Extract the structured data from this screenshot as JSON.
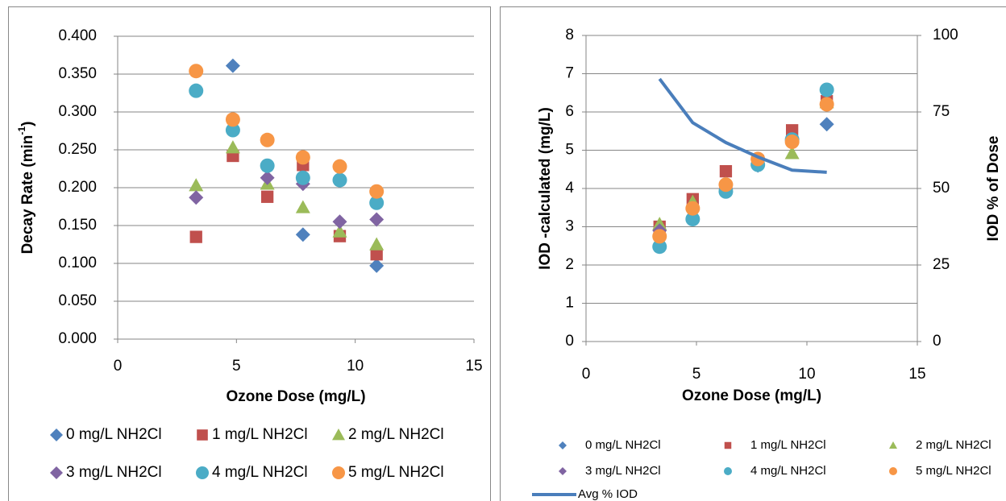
{
  "chart_data": [
    {
      "type": "scatter",
      "xlabel": "Ozone Dose (mg/L)",
      "ylabel_parts": [
        "Decay Rate (min",
        "-1",
        ")"
      ],
      "x": [
        3.3,
        4.85,
        6.3,
        7.8,
        9.35,
        10.9
      ],
      "xlim": [
        0,
        15
      ],
      "xticks": [
        0,
        5,
        10,
        15
      ],
      "ylim": [
        0,
        0.4
      ],
      "yticks": [
        {
          "value": 0,
          "label": "0.000"
        },
        {
          "value": 0.05,
          "label": "0.050"
        },
        {
          "value": 0.1,
          "label": "0.100"
        },
        {
          "value": 0.15,
          "label": "0.150"
        },
        {
          "value": 0.2,
          "label": "0.200"
        },
        {
          "value": 0.25,
          "label": "0.250"
        },
        {
          "value": 0.3,
          "label": "0.300"
        },
        {
          "value": 0.35,
          "label": "0.350"
        },
        {
          "value": 0.4,
          "label": "0.400"
        }
      ],
      "grid": true,
      "legend": "bottom",
      "series": [
        {
          "name": "0 mg/L NH2Cl",
          "color": "#4f81bd",
          "marker": "diamond",
          "values": [
            null,
            0.361,
            null,
            0.138,
            null,
            0.097
          ]
        },
        {
          "name": "1 mg/L NH2Cl",
          "color": "#c0504d",
          "marker": "square",
          "values": [
            0.135,
            0.242,
            0.188,
            0.23,
            0.136,
            0.112
          ]
        },
        {
          "name": "2 mg/L NH2Cl",
          "color": "#9bbb59",
          "marker": "triangle",
          "values": [
            0.203,
            0.253,
            0.205,
            0.174,
            0.142,
            0.125
          ]
        },
        {
          "name": "3 mg/L NH2Cl",
          "color": "#8064a2",
          "marker": "diamond",
          "values": [
            0.187,
            null,
            0.213,
            0.205,
            0.155,
            0.158
          ]
        },
        {
          "name": "4 mg/L NH2Cl",
          "color": "#4bacc6",
          "marker": "circle",
          "values": [
            0.328,
            0.276,
            0.229,
            0.213,
            0.21,
            0.18
          ]
        },
        {
          "name": "5 mg/L NH2Cl",
          "color": "#f79646",
          "marker": "circle",
          "values": [
            0.354,
            0.29,
            0.263,
            0.24,
            0.228,
            0.195
          ]
        }
      ]
    },
    {
      "type": "scatter",
      "xlabel": "Ozone Dose (mg/L)",
      "ylabel": "IOD -calculated (mg/L)",
      "y2label": "IOD % of Dose",
      "x": [
        3.33,
        4.83,
        6.33,
        7.78,
        9.33,
        10.9
      ],
      "xlim": [
        0,
        15
      ],
      "xticks": [
        0,
        5,
        10,
        15
      ],
      "ylim": [
        0,
        8
      ],
      "yticks": [
        0,
        1,
        2,
        3,
        4,
        5,
        6,
        7,
        8
      ],
      "y2lim": [
        0,
        100
      ],
      "y2ticks": [
        0,
        25,
        50,
        75,
        100
      ],
      "grid": true,
      "legend": "bottom",
      "series": [
        {
          "name": "0 mg/L NH2Cl",
          "color": "#4f81bd",
          "marker": "diamond",
          "values": [
            null,
            null,
            null,
            4.6,
            null,
            5.68
          ]
        },
        {
          "name": "1 mg/L NH2Cl",
          "color": "#c0504d",
          "marker": "square",
          "values": [
            3.0,
            3.72,
            4.45,
            4.72,
            5.52,
            6.28
          ]
        },
        {
          "name": "2 mg/L NH2Cl",
          "color": "#9bbb59",
          "marker": "triangle",
          "values": [
            3.07,
            3.65,
            4.12,
            4.75,
            4.92,
            6.25
          ]
        },
        {
          "name": "3 mg/L NH2Cl",
          "color": "#8064a2",
          "marker": "diamond",
          "values": [
            2.9,
            3.45,
            4.0,
            4.65,
            5.25,
            6.2
          ]
        },
        {
          "name": "4 mg/L NH2Cl",
          "color": "#4bacc6",
          "marker": "circle",
          "values": [
            2.48,
            3.2,
            3.92,
            4.62,
            5.28,
            6.58
          ]
        },
        {
          "name": "5 mg/L NH2Cl",
          "color": "#f79646",
          "marker": "circle",
          "values": [
            2.75,
            3.48,
            4.1,
            4.77,
            5.22,
            6.2
          ]
        },
        {
          "name": "Avg % IOD",
          "color": "#4a7ebb",
          "marker": "line",
          "axis": "y2",
          "values": [
            85.8,
            71.5,
            65,
            60.3,
            56,
            55.3
          ]
        }
      ]
    }
  ]
}
